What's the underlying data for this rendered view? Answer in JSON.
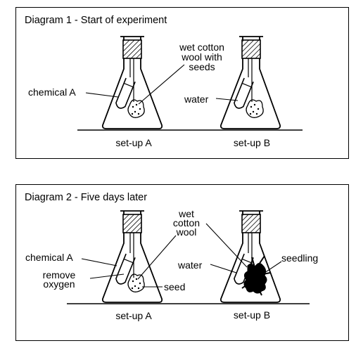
{
  "diagram1": {
    "title": "Diagram 1 - Start of experiment",
    "labels": {
      "chemical": "chemical A",
      "cotton_line1": "wet cotton",
      "cotton_line2": "wool with",
      "cotton_line3": "seeds",
      "water": "water",
      "setup_a": "set-up A",
      "setup_b": "set-up B"
    }
  },
  "diagram2": {
    "title": "Diagram 2 - Five days later",
    "labels": {
      "cotton_line1": "wet",
      "cotton_line2": "cotton",
      "cotton_line3": "wool",
      "chemical": "chemical A",
      "remove_line1": "remove",
      "remove_line2": "oxygen",
      "water": "water",
      "seedling": "seedling",
      "seed": "seed",
      "setup_a": "set-up A",
      "setup_b": "set-up B"
    }
  }
}
